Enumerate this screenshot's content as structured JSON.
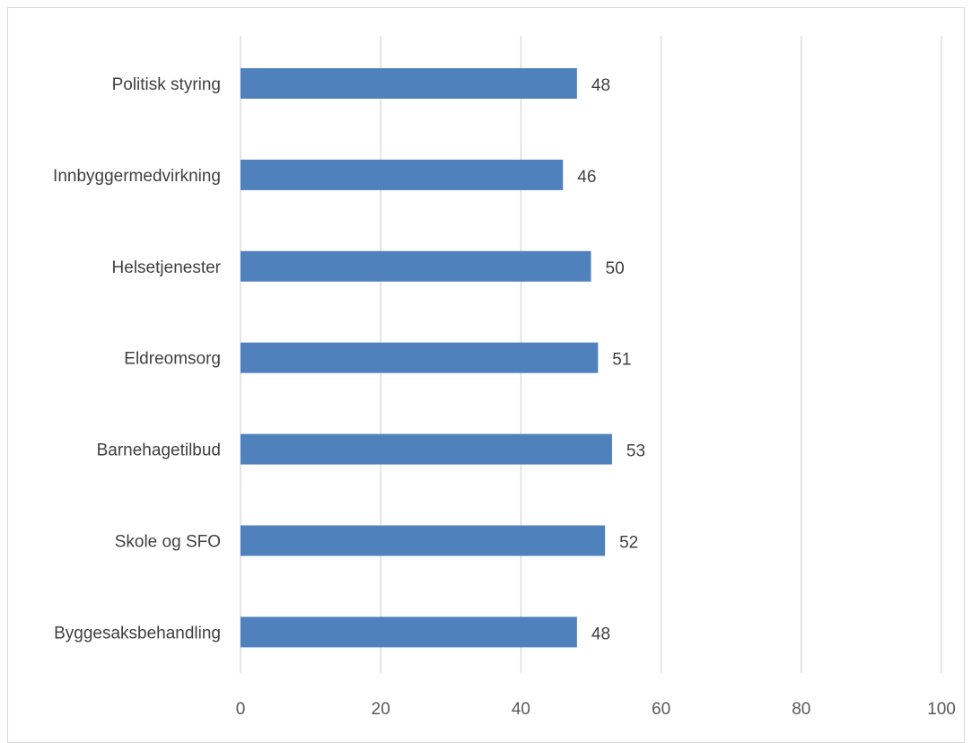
{
  "chart_data": {
    "type": "bar",
    "orientation": "horizontal",
    "categories": [
      "Politisk styring",
      "Innbyggermedvirkning",
      "Helsetjenester",
      "Eldreomsorg",
      "Barnehagetilbud",
      "Skole og SFO",
      "Byggesaksbehandling"
    ],
    "values": [
      48,
      46,
      50,
      51,
      53,
      52,
      48
    ],
    "xlim": [
      0,
      100
    ],
    "xticks": [
      "0",
      "20",
      "40",
      "60",
      "80",
      "100"
    ],
    "grid": "vertical",
    "bar_color": "#4f81bd",
    "grid_color": "#d9d9d9",
    "data_labels": true
  }
}
